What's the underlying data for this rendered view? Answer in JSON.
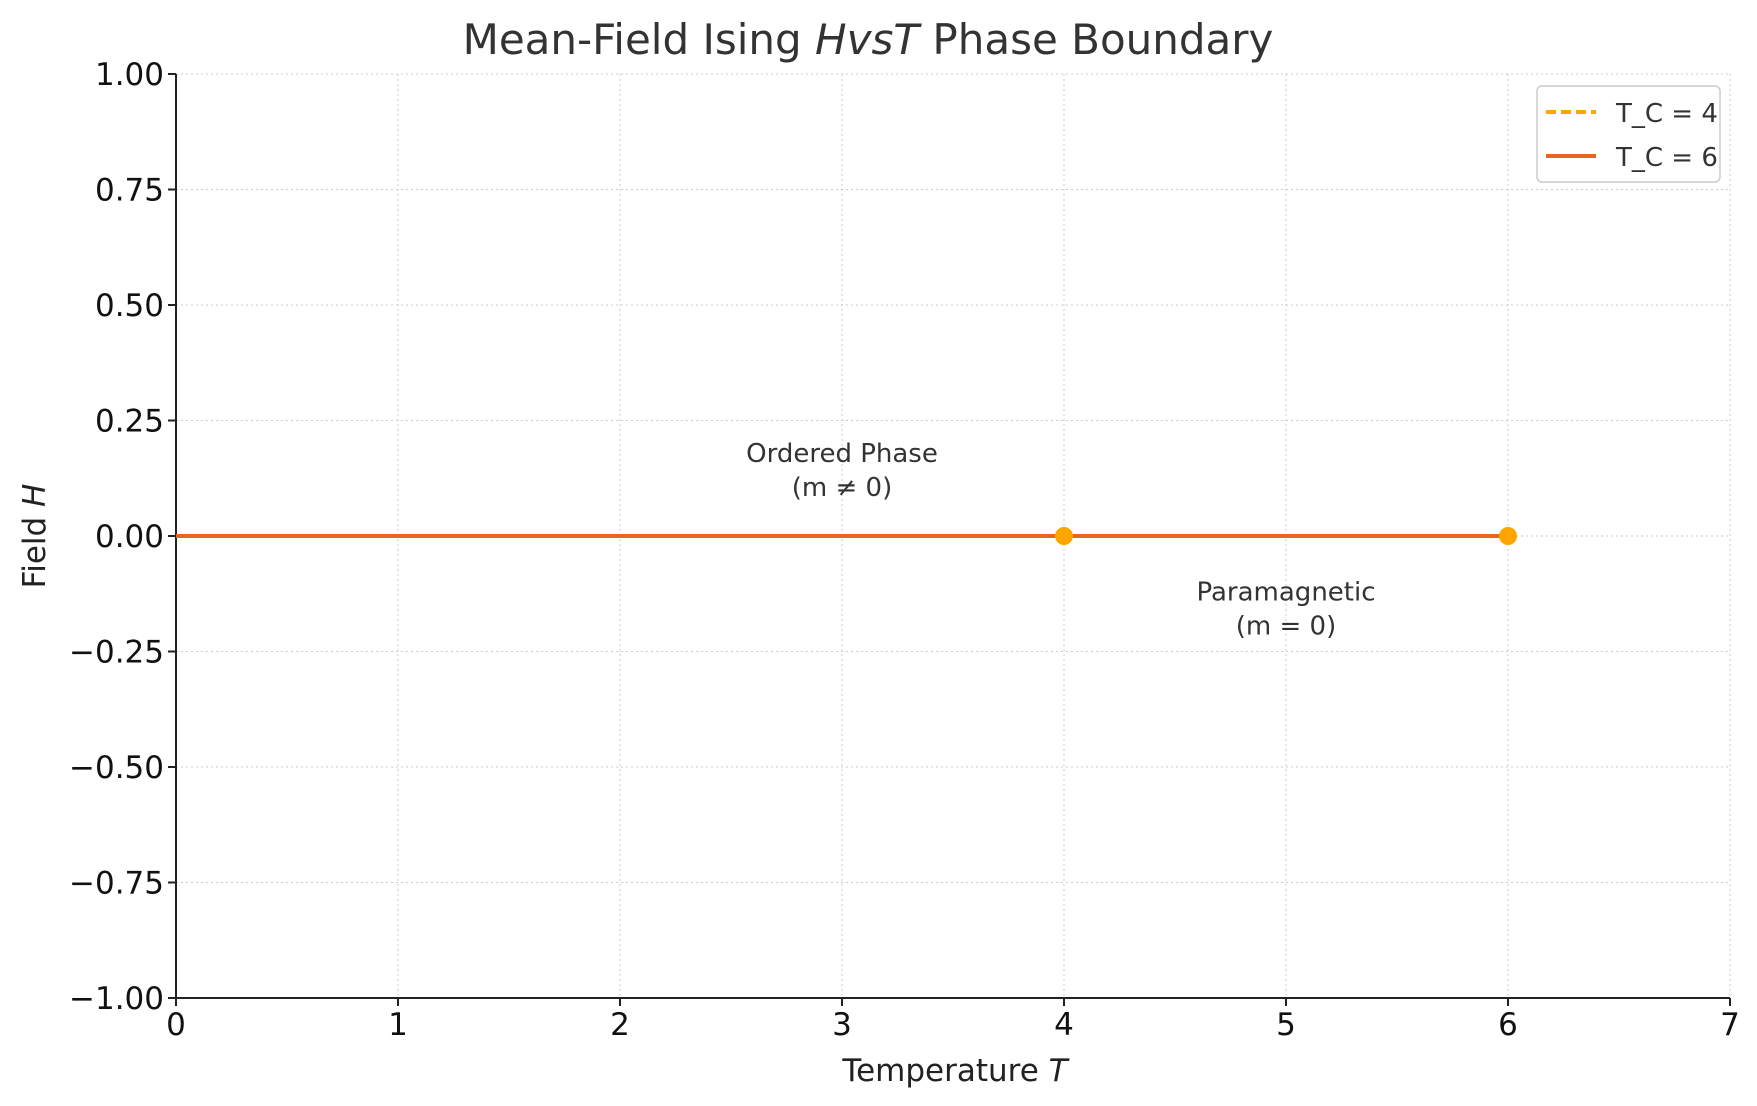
{
  "chart_data": {
    "type": "line",
    "title": "Mean-Field Ising HvsT Phase Boundary",
    "title_parts": {
      "prefix": "Mean-Field Ising ",
      "math": "HvsT",
      "suffix": " Phase Boundary"
    },
    "xlabel": "Temperature T",
    "xlabel_parts": {
      "text": "Temperature ",
      "math": "T"
    },
    "ylabel": "Field H",
    "ylabel_parts": {
      "text": "Field ",
      "math": "H"
    },
    "xlim": [
      0,
      7
    ],
    "ylim": [
      -1,
      1
    ],
    "xticks": [
      0,
      1,
      2,
      3,
      4,
      5,
      6,
      7
    ],
    "xtick_labels": [
      "0",
      "1",
      "2",
      "3",
      "4",
      "5",
      "6",
      "7"
    ],
    "yticks": [
      -1,
      -0.75,
      -0.5,
      -0.25,
      0,
      0.25,
      0.5,
      0.75,
      1
    ],
    "ytick_labels": [
      "−1.00",
      "−0.75",
      "−0.50",
      "−0.25",
      "0.00",
      "0.25",
      "0.50",
      "0.75",
      "1.00"
    ],
    "grid": true,
    "legend_position": "top-right",
    "series": [
      {
        "name": "T_C = 4",
        "legend_label": "T_C = 4",
        "x": [
          0,
          4
        ],
        "y": [
          0,
          0
        ],
        "endpoint": [
          4,
          0
        ],
        "color": "#FFA500",
        "linestyle": "dashed"
      },
      {
        "name": "T_C = 6",
        "legend_label": "T_C = 6",
        "x": [
          0,
          6
        ],
        "y": [
          0,
          0
        ],
        "endpoint": [
          6,
          0
        ],
        "color": "#E8651F",
        "linestyle": "solid"
      }
    ],
    "annotations": [
      {
        "lines": [
          "Ordered Phase",
          "(m ≠ 0)"
        ],
        "x": 3,
        "y": 0.16
      },
      {
        "lines": [
          "Paramagnetic",
          "(m = 0)"
        ],
        "x": 5,
        "y": -0.14
      }
    ]
  }
}
